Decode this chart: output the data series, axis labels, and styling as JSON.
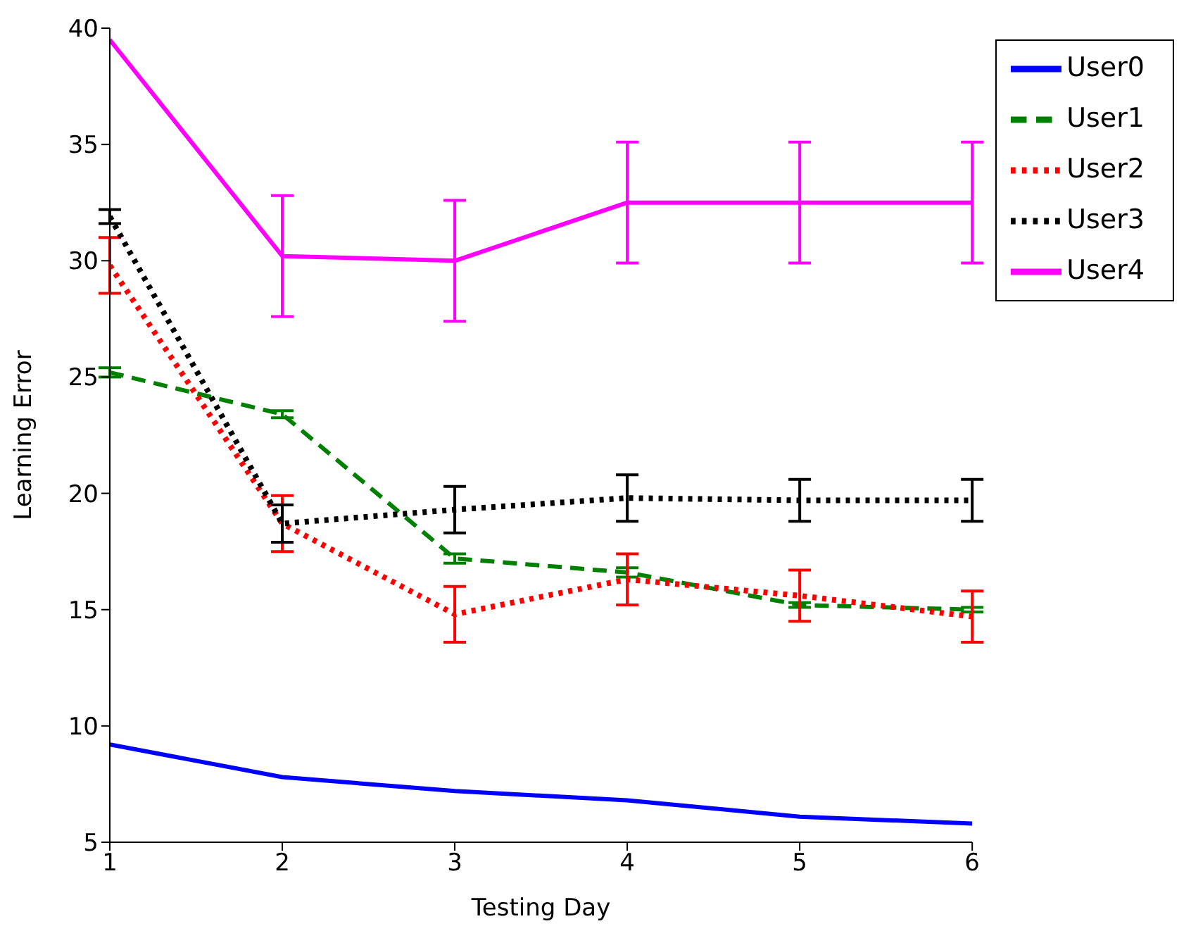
{
  "chart_data": {
    "type": "line",
    "xlabel": "Testing Day",
    "ylabel": "Learning Error",
    "x": [
      1,
      2,
      3,
      4,
      5,
      6
    ],
    "xlim": [
      1,
      6
    ],
    "xticks": [
      1,
      2,
      3,
      4,
      5,
      6
    ],
    "ylim": [
      5,
      40
    ],
    "yticks": [
      5,
      10,
      15,
      20,
      25,
      30,
      35,
      40
    ],
    "grid": false,
    "legend": "right",
    "marker": "none",
    "series": [
      {
        "name": "User0",
        "color": "#0000ff",
        "line_style": "solid",
        "values": [
          9.2,
          7.8,
          7.2,
          6.8,
          6.1,
          5.8
        ]
      },
      {
        "name": "User1",
        "color": "#008000",
        "line_style": "dashed",
        "values": [
          25.2,
          23.4,
          17.2,
          16.6,
          15.2,
          15.0
        ],
        "errors": [
          0.2,
          0.15,
          0.2,
          0.2,
          0.1,
          0.1
        ]
      },
      {
        "name": "User2",
        "color": "#ff0000",
        "line_style": "dotted",
        "values": [
          29.8,
          18.7,
          14.8,
          16.3,
          15.6,
          14.7
        ],
        "errors": [
          1.2,
          1.2,
          1.2,
          1.1,
          1.1,
          1.1
        ]
      },
      {
        "name": "User3",
        "color": "#000000",
        "line_style": "dotted",
        "values": [
          31.9,
          18.7,
          19.3,
          19.8,
          19.7,
          19.7
        ],
        "errors": [
          0.3,
          0.8,
          1.0,
          1.0,
          0.9,
          0.9
        ]
      },
      {
        "name": "User4",
        "color": "#ff00ff",
        "line_style": "solid",
        "values": [
          39.5,
          30.2,
          30.0,
          32.5,
          32.5,
          32.5
        ],
        "errors": [
          null,
          2.6,
          2.6,
          2.6,
          2.6,
          2.6
        ]
      }
    ]
  }
}
